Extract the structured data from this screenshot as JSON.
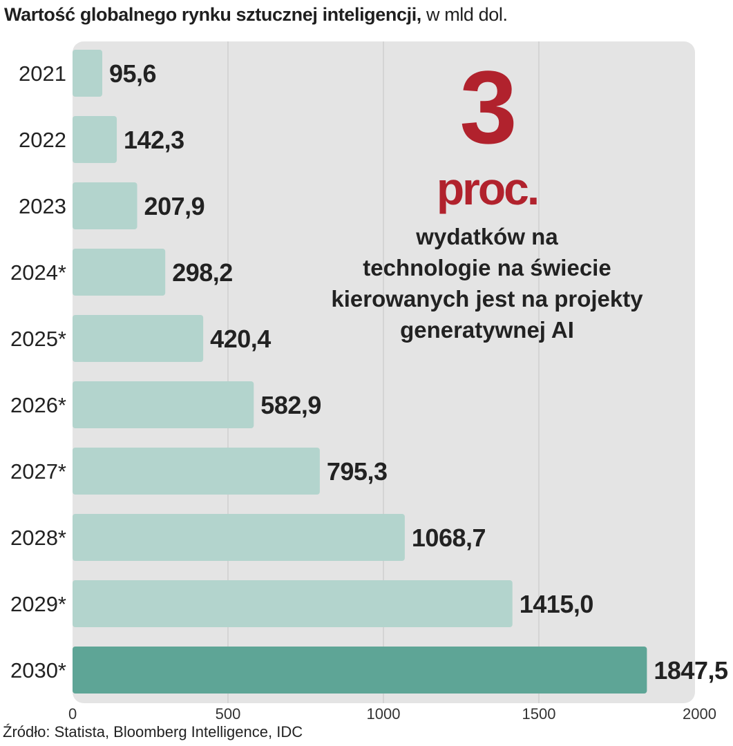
{
  "title": {
    "main": "Wartość globalnego rynku sztucznej inteligencji,",
    "unit": " w mld dol."
  },
  "callout": {
    "number": "3",
    "unit": "proc.",
    "lines": [
      "wydatków na",
      "technologie na świecie",
      "kierowanych jest na projekty",
      "generatywnej AI"
    ]
  },
  "source": "Źródło: Statista, Bloomberg Intelligence, IDC",
  "colors": {
    "bar": "#b3d4cd",
    "bar_highlight": "#5ea596",
    "accent": "#b1222d",
    "panel": "#e4e4e4"
  },
  "chart_data": {
    "type": "bar",
    "orientation": "horizontal",
    "categories": [
      "2021",
      "2022",
      "2023",
      "2024*",
      "2025*",
      "2026*",
      "2027*",
      "2028*",
      "2029*",
      "2030*"
    ],
    "values": [
      95.6,
      142.3,
      207.9,
      298.2,
      420.4,
      582.9,
      795.3,
      1068.7,
      1415.0,
      1847.5
    ],
    "value_labels": [
      "95,6",
      "142,3",
      "207,9",
      "298,2",
      "420,4",
      "582,9",
      "795,3",
      "1068,7",
      "1415,0",
      "1847,5"
    ],
    "xlim": [
      0,
      2000
    ],
    "xticks": [
      "0",
      "500",
      "1000",
      "1500",
      "2000"
    ],
    "highlight_index": 9,
    "grid": true
  }
}
